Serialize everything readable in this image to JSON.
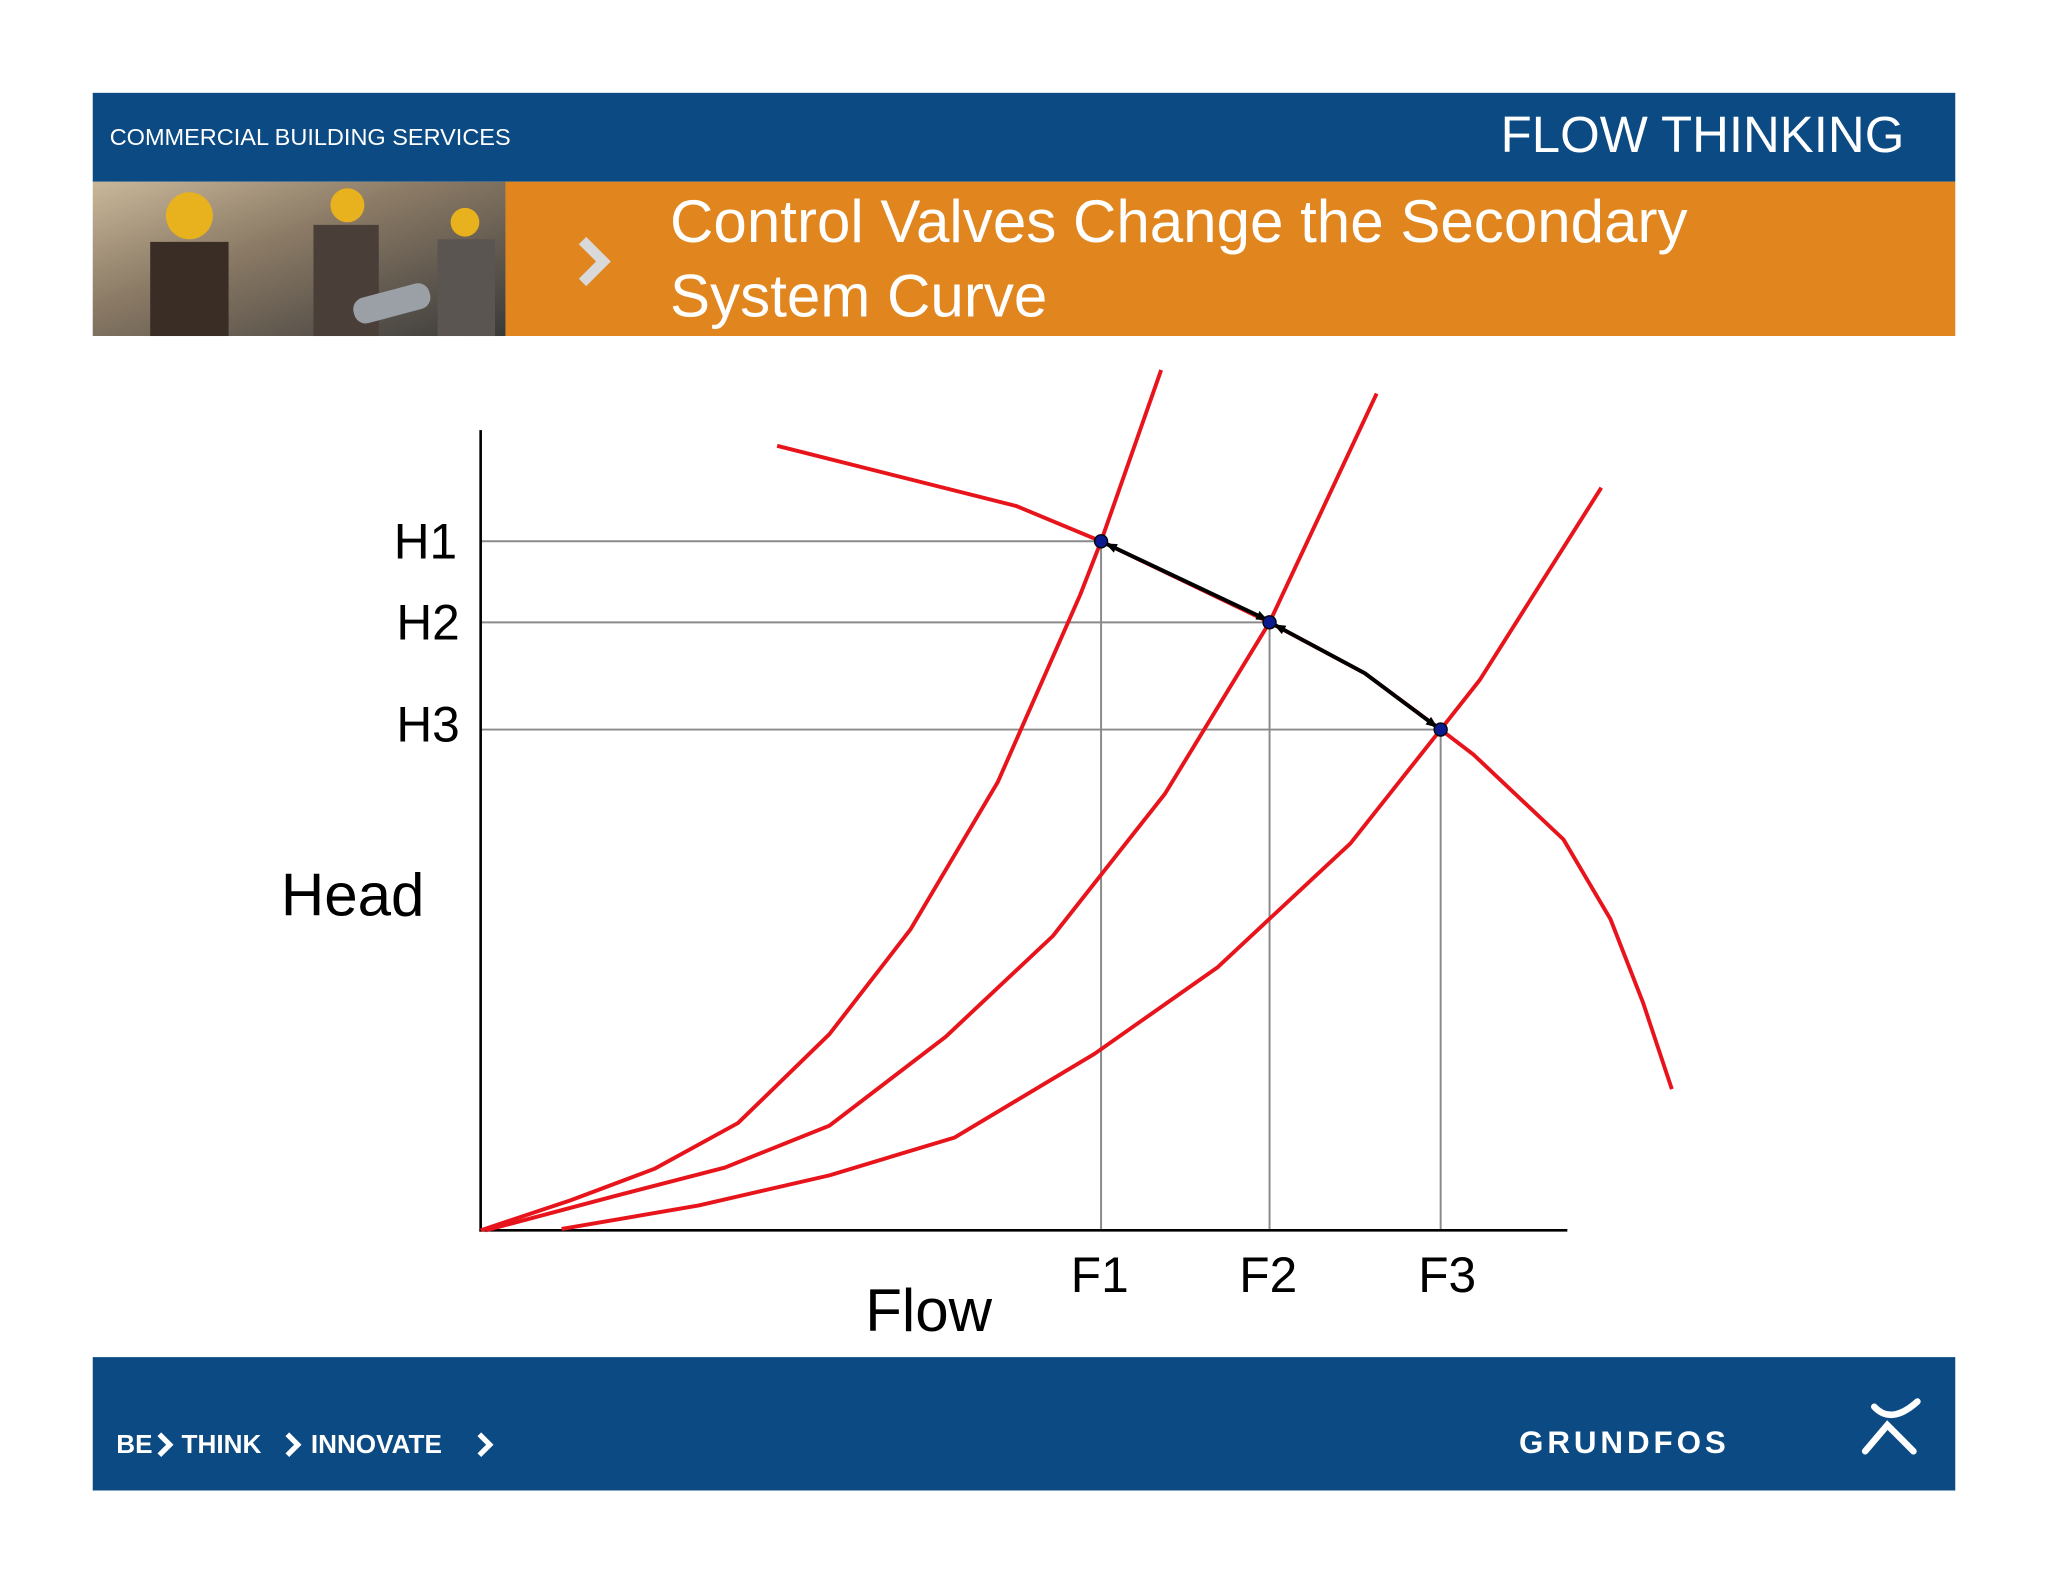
{
  "header": {
    "section": "COMMERCIAL BUILDING SERVICES",
    "brand": "FLOW THINKING",
    "title_lines": [
      "Control Valves Change the Secondary",
      "System Curve"
    ]
  },
  "diagram": {
    "y_axis_label": "Head",
    "x_axis_label": "Flow",
    "head_levels": [
      "H1",
      "H2",
      "H3"
    ],
    "flow_levels": [
      "F1",
      "F2",
      "F3"
    ]
  },
  "footer": {
    "tagline": [
      "BE",
      "THINK",
      "INNOVATE"
    ],
    "logo": "GRUNDFOS"
  }
}
